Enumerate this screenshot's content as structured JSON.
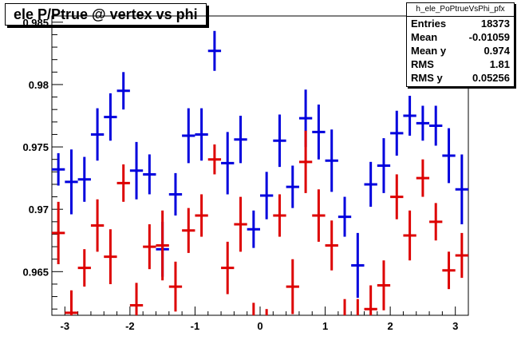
{
  "title": "ele P/Ptrue @ vertex vs phi",
  "stats": {
    "name": "h_ele_PoPtrueVsPhi_pfx",
    "rows": [
      {
        "label": "Entries",
        "value": "18373"
      },
      {
        "label": "Mean",
        "value": "-0.01059"
      },
      {
        "label": "Mean y",
        "value": "0.974"
      },
      {
        "label": "RMS",
        "value": "1.81"
      },
      {
        "label": "RMS y",
        "value": "0.05256"
      }
    ]
  },
  "colors": {
    "series1": "#0000dd",
    "series2": "#dd0000",
    "axis": "#000000"
  },
  "chart_data": {
    "type": "scatter",
    "title": "ele P/Ptrue @ vertex vs phi",
    "xlim": [
      -3.2,
      3.2
    ],
    "ylim": [
      0.9615,
      0.9855
    ],
    "xticks": [
      -3,
      -2,
      -1,
      0,
      1,
      2,
      3
    ],
    "yticks": [
      0.965,
      0.97,
      0.975,
      0.98,
      0.985
    ],
    "ytick_labels": [
      "0.965",
      "0.97",
      "0.975",
      "0.98",
      "0.985"
    ],
    "grid": false,
    "series": [
      {
        "color": "#0000dd",
        "x": [
          -3.1,
          -2.9,
          -2.7,
          -2.5,
          -2.3,
          -2.1,
          -1.9,
          -1.7,
          -1.5,
          -1.3,
          -1.1,
          -0.9,
          -0.7,
          -0.5,
          -0.3,
          -0.1,
          0.1,
          0.3,
          0.5,
          0.7,
          0.9,
          1.1,
          1.3,
          1.5,
          1.7,
          1.9,
          2.1,
          2.3,
          2.5,
          2.7,
          2.9,
          3.1
        ],
        "y": [
          0.9732,
          0.9722,
          0.9724,
          0.976,
          0.9774,
          0.9795,
          0.9731,
          0.9728,
          0.9668,
          0.9712,
          0.9759,
          0.976,
          0.9827,
          0.9737,
          0.9756,
          0.9684,
          0.9711,
          0.9755,
          0.9718,
          0.9773,
          0.9762,
          0.9739,
          0.9694,
          0.9655,
          0.972,
          0.9735,
          0.9761,
          0.9775,
          0.9769,
          0.9767,
          0.9743,
          0.9716
        ],
        "err": [
          0.0013,
          0.0026,
          0.0018,
          0.0021,
          0.0019,
          0.0015,
          0.0023,
          0.0016,
          0.0022,
          0.0017,
          0.0022,
          0.0021,
          0.0016,
          0.0025,
          0.0019,
          0.0015,
          0.0019,
          0.0021,
          0.0017,
          0.0023,
          0.0022,
          0.0025,
          0.0016,
          0.0026,
          0.0018,
          0.0022,
          0.0018,
          0.0016,
          0.0014,
          0.0016,
          0.0022,
          0.0028
        ]
      },
      {
        "color": "#dd0000",
        "x": [
          -3.1,
          -2.9,
          -2.7,
          -2.5,
          -2.3,
          -2.1,
          -1.9,
          -1.7,
          -1.5,
          -1.3,
          -1.1,
          -0.9,
          -0.7,
          -0.5,
          -0.3,
          -0.1,
          0.1,
          0.3,
          0.5,
          0.7,
          0.9,
          1.1,
          1.3,
          1.5,
          1.7,
          1.9,
          2.1,
          2.3,
          2.5,
          2.7,
          2.9,
          3.1
        ],
        "y": [
          0.9681,
          0.9617,
          0.9653,
          0.9687,
          0.9662,
          0.9721,
          0.9623,
          0.967,
          0.9671,
          0.9638,
          0.9683,
          0.9695,
          0.974,
          0.9653,
          0.9688,
          0.9605,
          0.96,
          0.9695,
          0.9638,
          0.9738,
          0.9695,
          0.9671,
          0.9608,
          0.9608,
          0.962,
          0.9639,
          0.971,
          0.9679,
          0.9725,
          0.969,
          0.9651,
          0.9663
        ],
        "err": [
          0.0025,
          0.0018,
          0.0015,
          0.0021,
          0.0022,
          0.0015,
          0.0018,
          0.0018,
          0.0028,
          0.002,
          0.0018,
          0.0017,
          0.0012,
          0.0021,
          0.0022,
          0.002,
          0.002,
          0.0017,
          0.0022,
          0.0025,
          0.0021,
          0.002,
          0.002,
          0.002,
          0.0019,
          0.002,
          0.0018,
          0.002,
          0.0015,
          0.0015,
          0.0015,
          0.0018
        ]
      }
    ]
  }
}
